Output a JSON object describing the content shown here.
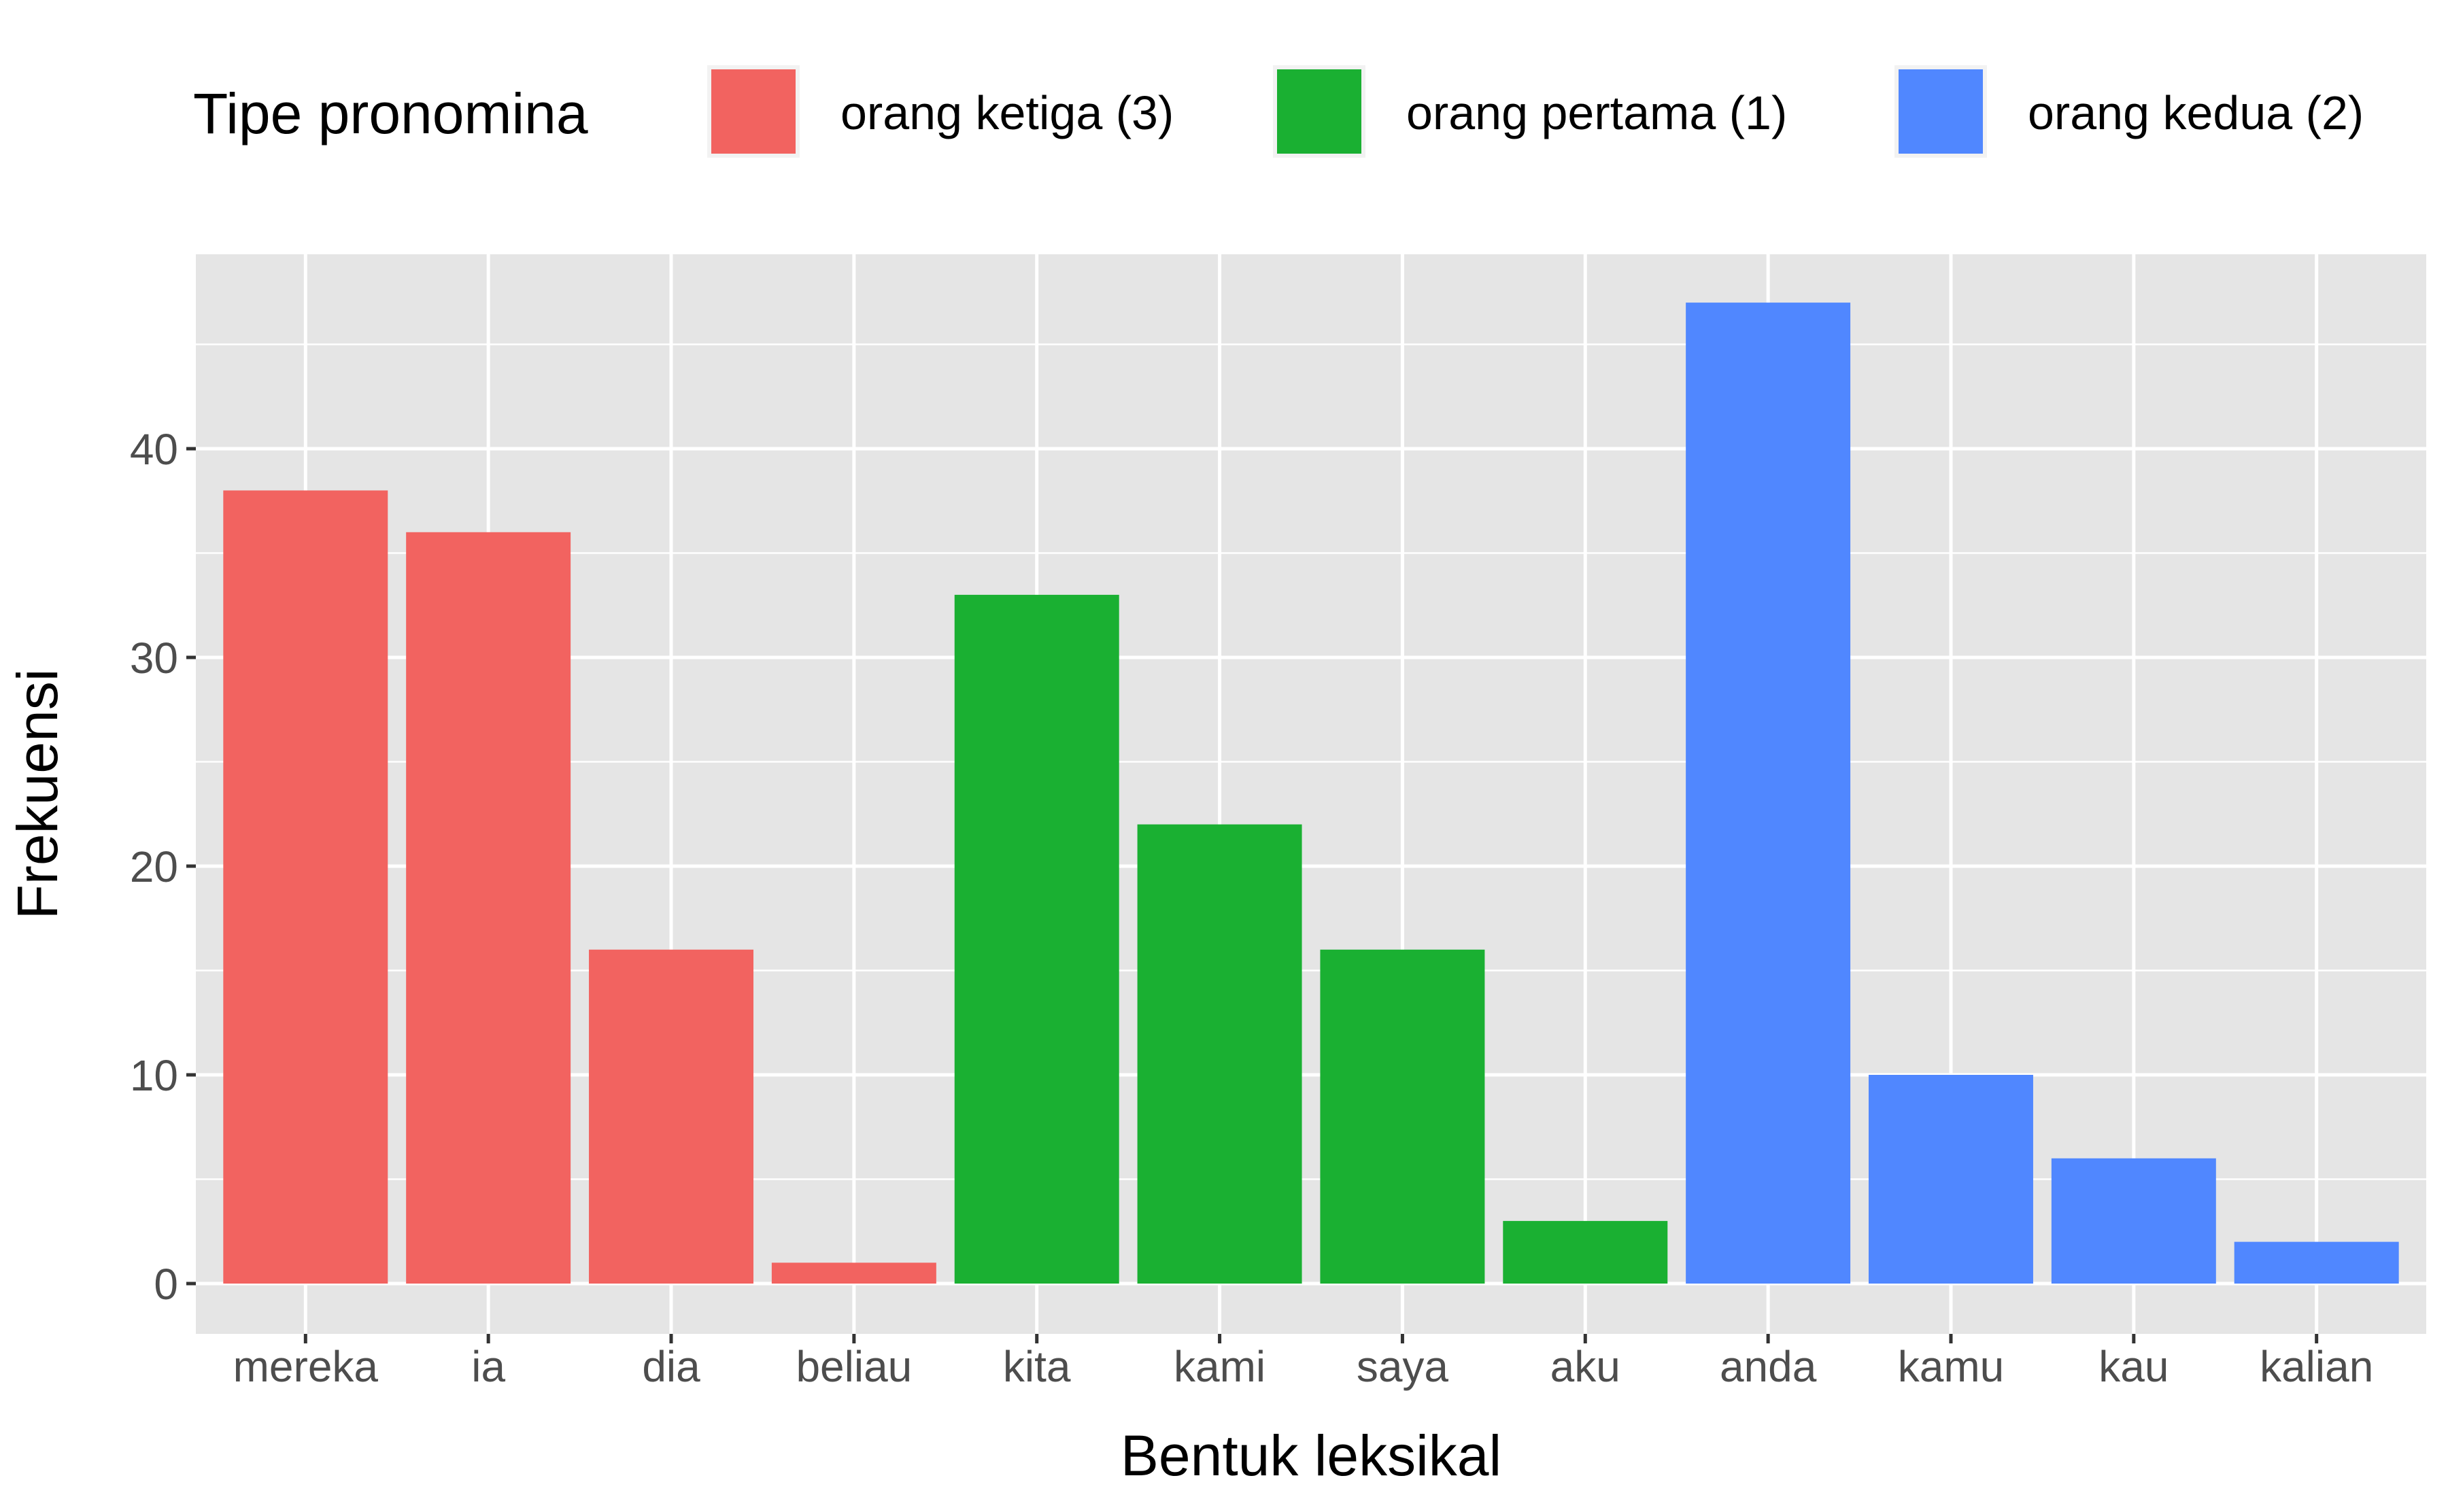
{
  "chart_data": {
    "type": "bar",
    "title": "",
    "xlabel": "Bentuk leksikal",
    "ylabel": "Frekuensi",
    "ylim": [
      0,
      49
    ],
    "y_ticks": [
      0,
      10,
      20,
      30,
      40
    ],
    "y_tick_labels": [
      "0",
      "10",
      "20",
      "30",
      "40"
    ],
    "grid": true,
    "legend": {
      "title": "Tipe pronomina",
      "position": "top",
      "entries": [
        {
          "label": "orang ketiga (3)",
          "color": "#F26360"
        },
        {
          "label": "orang pertama (1)",
          "color": "#1AB032"
        },
        {
          "label": "orang kedua (2)",
          "color": "#5087FF"
        }
      ]
    },
    "categories": [
      "mereka",
      "ia",
      "dia",
      "beliau",
      "kita",
      "kami",
      "saya",
      "aku",
      "anda",
      "kamu",
      "kau",
      "kalian"
    ],
    "values": [
      38,
      36,
      16,
      1,
      33,
      22,
      16,
      3,
      47,
      10,
      6,
      2
    ],
    "groups": [
      0,
      0,
      0,
      0,
      1,
      1,
      1,
      1,
      2,
      2,
      2,
      2
    ]
  },
  "colors": {
    "panel_background": "#E5E5E5",
    "grid": "#FFFFFF",
    "tick_text": "#4D4D4D",
    "tick_mark": "#333333"
  }
}
